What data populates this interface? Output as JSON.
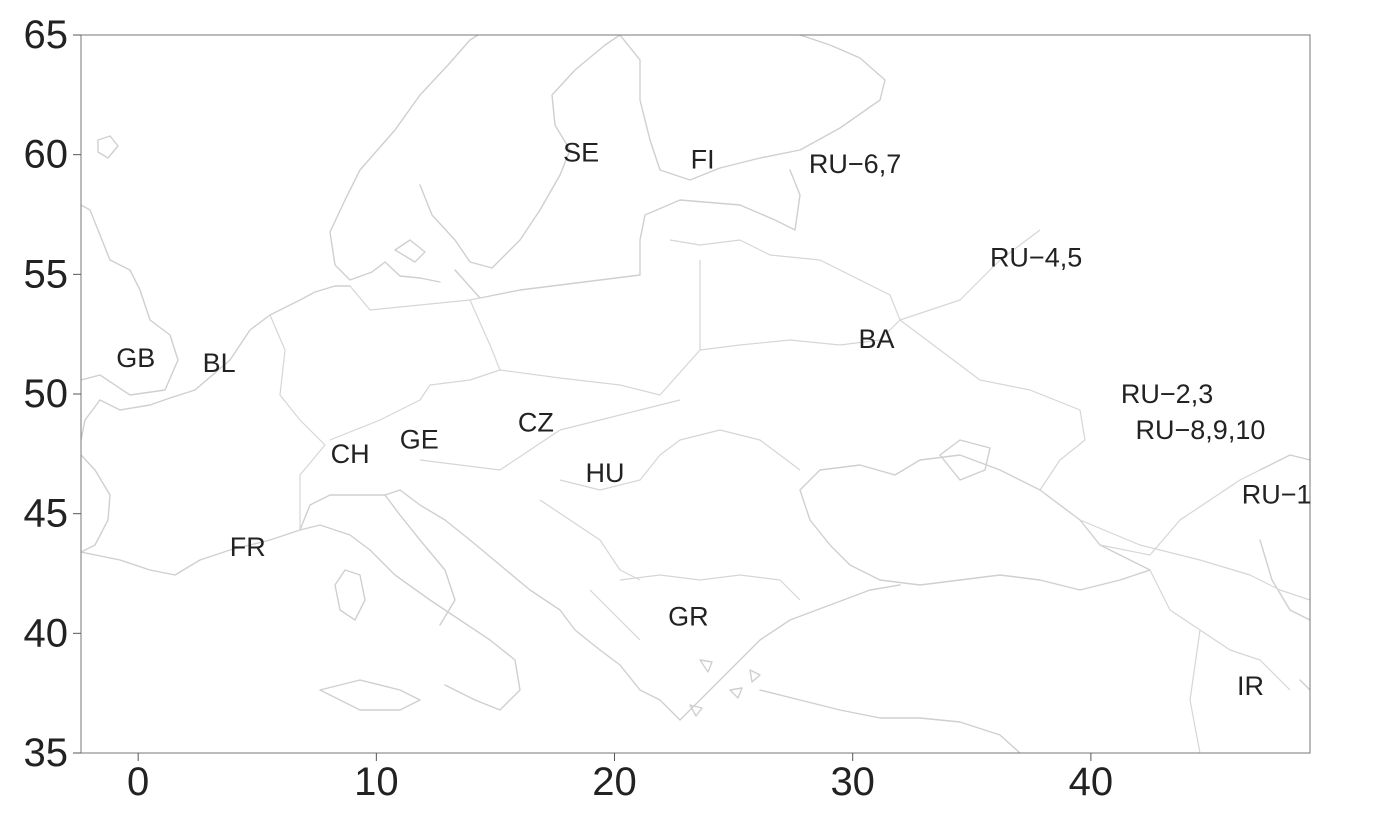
{
  "chart_data": {
    "type": "scatter",
    "title": "",
    "xlabel": "",
    "ylabel": "",
    "xlim": [
      -2.4,
      49.2
    ],
    "ylim": [
      35,
      65
    ],
    "x_ticks": [
      0,
      10,
      20,
      30,
      40
    ],
    "y_ticks": [
      35,
      40,
      45,
      50,
      55,
      60,
      65
    ],
    "x_tick_labels": [
      "0",
      "10",
      "20",
      "30",
      "40"
    ],
    "y_tick_labels": [
      "35",
      "40",
      "45",
      "50",
      "55",
      "60",
      "65"
    ],
    "grid": false,
    "basemap": "Europe coastlines and country borders (light grey)",
    "points": [
      {
        "label": "SE",
        "x": 18.6,
        "y": 60.1
      },
      {
        "label": "FI",
        "x": 23.7,
        "y": 59.8
      },
      {
        "label": "RU−6,7",
        "x": 30.1,
        "y": 59.6
      },
      {
        "label": "RU−4,5",
        "x": 37.7,
        "y": 55.7
      },
      {
        "label": "BA",
        "x": 31.0,
        "y": 52.3
      },
      {
        "label": "GB",
        "x": -0.1,
        "y": 51.5
      },
      {
        "label": "BL",
        "x": 3.4,
        "y": 51.3
      },
      {
        "label": "RU−2,3",
        "x": 43.2,
        "y": 50.0
      },
      {
        "label": "RU−8,9,10",
        "x": 44.6,
        "y": 48.5
      },
      {
        "label": "CZ",
        "x": 16.7,
        "y": 48.8
      },
      {
        "label": "GE",
        "x": 11.8,
        "y": 48.1
      },
      {
        "label": "CH",
        "x": 8.9,
        "y": 47.5
      },
      {
        "label": "HU",
        "x": 19.6,
        "y": 46.7
      },
      {
        "label": "RU−1",
        "x": 47.8,
        "y": 45.8
      },
      {
        "label": "FR",
        "x": 4.6,
        "y": 43.6
      },
      {
        "label": "GR",
        "x": 23.1,
        "y": 40.7
      },
      {
        "label": "IR",
        "x": 46.7,
        "y": 37.8
      }
    ]
  }
}
